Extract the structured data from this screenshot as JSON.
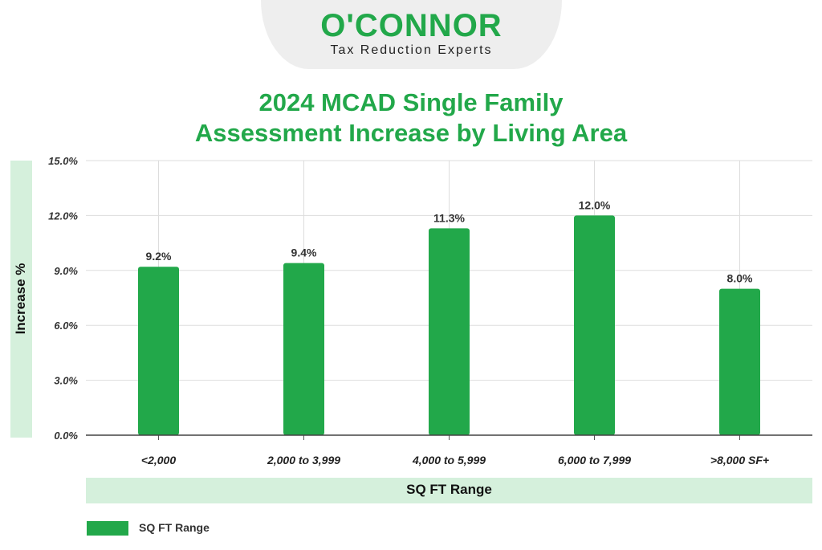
{
  "logo": {
    "name": "O'CONNOR",
    "tagline": "Tax Reduction Experts"
  },
  "colors": {
    "accent": "#22a84a",
    "band": "#d5f0dc"
  },
  "chart_data": {
    "type": "bar",
    "title_line1": "2024 MCAD Single Family",
    "title_line2": "Assessment Increase by Living Area",
    "xlabel": "SQ FT Range",
    "ylabel": "Increase %",
    "ylim": [
      0,
      15
    ],
    "yticks": [
      "0.0%",
      "3.0%",
      "6.0%",
      "9.0%",
      "12.0%",
      "15.0%"
    ],
    "categories": [
      "<2,000",
      "2,000 to 3,999",
      "4,000 to 5,999",
      "6,000 to 7,999",
      ">8,000 SF+"
    ],
    "series": [
      {
        "name": "SQ FT Range",
        "values": [
          9.2,
          9.4,
          11.3,
          12.0,
          8.0
        ],
        "labels": [
          "9.2%",
          "9.4%",
          "11.3%",
          "12.0%",
          "8.0%"
        ]
      }
    ],
    "grid": true,
    "legend_position": "bottom-left"
  }
}
